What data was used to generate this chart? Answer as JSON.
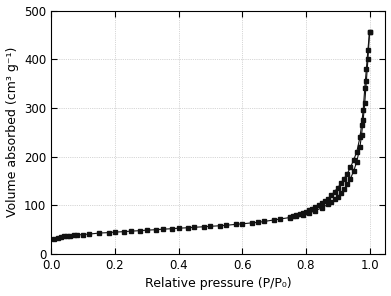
{
  "xlabel": "Relative pressure (P/P₀)",
  "ylabel": "Volume absorbed (cm³ g⁻¹)",
  "xlim": [
    0.0,
    1.05
  ],
  "ylim": [
    0,
    500
  ],
  "xticks": [
    0.0,
    0.2,
    0.4,
    0.6,
    0.8,
    1.0
  ],
  "yticks": [
    0,
    100,
    200,
    300,
    400,
    500
  ],
  "background_color": "#ffffff",
  "grid_color": "#b0b0b0",
  "line_color": "#111111",
  "marker": "s",
  "markersize": 3.5,
  "adsorption_x": [
    0.01,
    0.02,
    0.03,
    0.04,
    0.05,
    0.06,
    0.07,
    0.08,
    0.1,
    0.12,
    0.15,
    0.18,
    0.2,
    0.23,
    0.25,
    0.28,
    0.3,
    0.33,
    0.35,
    0.38,
    0.4,
    0.43,
    0.45,
    0.48,
    0.5,
    0.53,
    0.55,
    0.58,
    0.6,
    0.63,
    0.65,
    0.67,
    0.7,
    0.72,
    0.75,
    0.77,
    0.79,
    0.81,
    0.83,
    0.85,
    0.87,
    0.88,
    0.89,
    0.9,
    0.91,
    0.92,
    0.93,
    0.94,
    0.95,
    0.96,
    0.97,
    0.975,
    0.98,
    0.985,
    0.99,
    0.995,
    1.0
  ],
  "adsorption_y": [
    30,
    33,
    35,
    36,
    37,
    38,
    38.5,
    39,
    40,
    41,
    43,
    44,
    45,
    46,
    47,
    48,
    49,
    50,
    51,
    52,
    53,
    54,
    55,
    56,
    57,
    58,
    59,
    61,
    62,
    64,
    65,
    67,
    70,
    72,
    75,
    78,
    81,
    85,
    89,
    95,
    102,
    107,
    112,
    118,
    125,
    133,
    143,
    155,
    170,
    190,
    220,
    245,
    275,
    310,
    355,
    400,
    455
  ],
  "desorption_x": [
    1.0,
    0.995,
    0.99,
    0.985,
    0.98,
    0.975,
    0.97,
    0.96,
    0.95,
    0.94,
    0.93,
    0.92,
    0.91,
    0.9,
    0.89,
    0.88,
    0.87,
    0.86,
    0.85,
    0.84,
    0.83,
    0.82,
    0.81,
    0.8,
    0.79,
    0.78,
    0.77,
    0.76,
    0.75
  ],
  "desorption_y": [
    455,
    420,
    380,
    340,
    295,
    265,
    240,
    210,
    193,
    178,
    165,
    155,
    145,
    136,
    128,
    121,
    114,
    109,
    104,
    100,
    96,
    93,
    90,
    87,
    85,
    83,
    81,
    79,
    77
  ]
}
